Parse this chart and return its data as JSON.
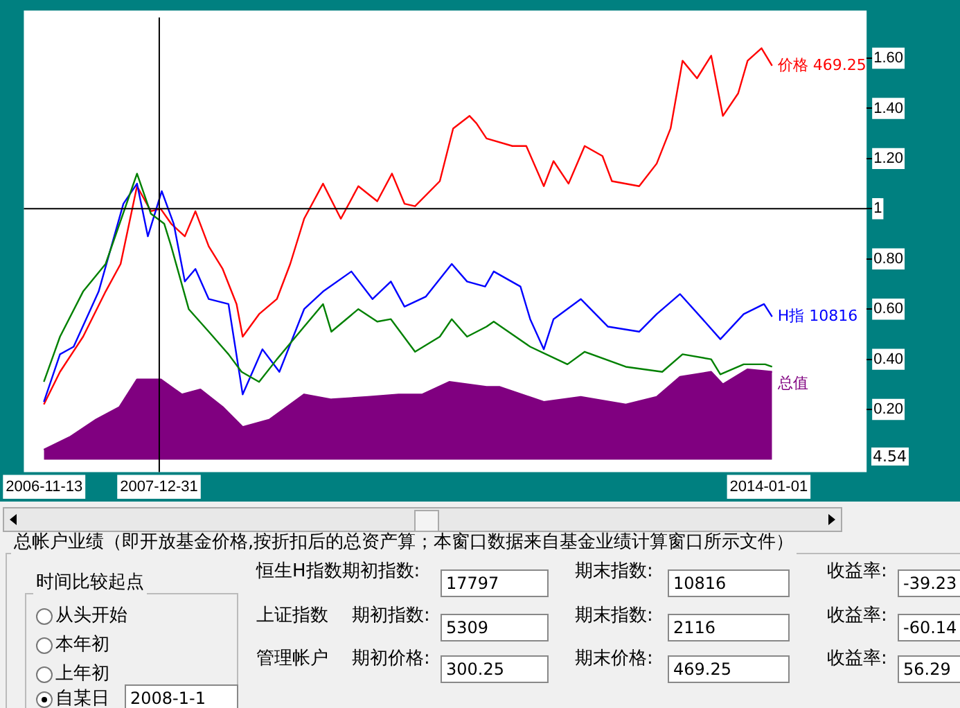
{
  "chart_data": {
    "type": "line",
    "xlim": [
      "2006-09-01",
      "2014-12-19"
    ],
    "xticks": [
      "2006-11-13",
      "2007-12-31",
      "2014-01-01"
    ],
    "ylim": [
      -0.05,
      1.79
    ],
    "yticks": [
      {
        "value": 0.2,
        "label": "0.20"
      },
      {
        "value": 0.4,
        "label": "0.40"
      },
      {
        "value": 0.6,
        "label": "0.60"
      },
      {
        "value": 0.8,
        "label": "0.80"
      },
      1,
      {
        "value": 1.2,
        "label": "1.20"
      },
      {
        "value": 1.4,
        "label": "1.40"
      },
      {
        "value": 1.6,
        "label": "1.60"
      }
    ],
    "ref_lines": [
      {
        "axis": "y",
        "value": 1,
        "color": "#000000"
      },
      {
        "axis": "x",
        "value": "2008-01-01",
        "color": "#000000"
      }
    ],
    "series": [
      {
        "name": "总值",
        "type": "area",
        "color": "#800080",
        "x": [
          "2006-11-12",
          "2007-02-13",
          "2007-05-19",
          "2007-08-11",
          "2007-10-13",
          "2008-01-06",
          "2008-03-22",
          "2008-05-28",
          "2008-08-16",
          "2008-10-27",
          "2009-02-01",
          "2009-06-05",
          "2009-09-11",
          "2010-01-20",
          "2010-05-11",
          "2010-08-04",
          "2010-11-09",
          "2011-03-23",
          "2011-05-08",
          "2011-10-15",
          "2012-02-25",
          "2012-08-05",
          "2012-11-24",
          "2013-02-16",
          "2013-06-08",
          "2013-07-20",
          "2013-10-17",
          "2014-01-13"
        ],
        "values": [
          0.04,
          0.09,
          0.16,
          0.21,
          0.32,
          0.32,
          0.26,
          0.28,
          0.21,
          0.13,
          0.16,
          0.26,
          0.24,
          0.25,
          0.26,
          0.26,
          0.31,
          0.29,
          0.29,
          0.23,
          0.25,
          0.22,
          0.25,
          0.33,
          0.35,
          0.3,
          0.36,
          0.35
        ]
      },
      {
        "type": "line",
        "color": "#008000",
        "x": [
          "2006-11-12",
          "2007-01-09",
          "2007-04-02",
          "2007-06-22",
          "2007-10-13",
          "2007-12-02",
          "2008-01-19",
          "2008-02-13",
          "2008-04-16",
          "2008-06-27",
          "2008-09-06",
          "2008-10-23",
          "2008-12-25",
          "2009-02-27",
          "2009-06-05",
          "2009-08-12",
          "2009-09-11",
          "2009-12-17",
          "2010-02-23",
          "2010-04-13",
          "2010-07-09",
          "2010-10-06",
          "2010-11-18",
          "2011-01-12",
          "2011-03-23",
          "2011-04-18",
          "2011-08-27",
          "2012-01-08",
          "2012-03-10",
          "2012-08-05",
          "2012-12-14",
          "2013-02-25",
          "2013-06-08",
          "2013-07-11",
          "2013-10-03",
          "2013-12-19",
          "2014-01-13"
        ],
        "values": [
          0.31,
          0.49,
          0.67,
          0.78,
          1.14,
          0.98,
          0.94,
          0.85,
          0.6,
          0.51,
          0.42,
          0.35,
          0.31,
          0.4,
          0.53,
          0.62,
          0.51,
          0.6,
          0.55,
          0.56,
          0.43,
          0.49,
          0.56,
          0.49,
          0.53,
          0.55,
          0.45,
          0.38,
          0.43,
          0.37,
          0.35,
          0.42,
          0.4,
          0.34,
          0.38,
          0.38,
          0.37
        ]
      },
      {
        "name": "H指 10816",
        "type": "line",
        "color": "#0000ff",
        "x": [
          "2006-11-12",
          "2007-01-09",
          "2007-02-27",
          "2007-05-28",
          "2007-08-25",
          "2007-10-13",
          "2007-11-21",
          "2008-01-10",
          "2008-02-22",
          "2008-04-02",
          "2008-05-10",
          "2008-06-27",
          "2008-09-06",
          "2008-10-27",
          "2009-01-06",
          "2009-03-08",
          "2009-06-05",
          "2009-08-12",
          "2009-11-22",
          "2010-02-06",
          "2010-04-13",
          "2010-06-01",
          "2010-08-17",
          "2010-11-18",
          "2011-01-12",
          "2011-03-18",
          "2011-04-18",
          "2011-07-23",
          "2011-08-27",
          "2011-10-15",
          "2011-11-19",
          "2012-02-25",
          "2012-06-02",
          "2012-09-22",
          "2012-11-24",
          "2013-02-16",
          "2013-05-08",
          "2013-07-11",
          "2013-10-03",
          "2013-12-15",
          "2014-01-13"
        ],
        "values": [
          0.23,
          0.42,
          0.45,
          0.67,
          1.02,
          1.1,
          0.89,
          1.07,
          0.94,
          0.71,
          0.76,
          0.64,
          0.62,
          0.26,
          0.44,
          0.35,
          0.6,
          0.67,
          0.75,
          0.64,
          0.71,
          0.61,
          0.65,
          0.78,
          0.71,
          0.69,
          0.75,
          0.69,
          0.56,
          0.44,
          0.56,
          0.64,
          0.53,
          0.51,
          0.58,
          0.66,
          0.56,
          0.48,
          0.58,
          0.62,
          0.57
        ]
      },
      {
        "name": "价格 469.25",
        "type": "line",
        "color": "#ff0000",
        "x": [
          "2006-11-12",
          "2007-01-09",
          "2007-04-02",
          "2007-06-22",
          "2007-08-15",
          "2007-10-13",
          "2007-12-02",
          "2008-01-06",
          "2008-02-13",
          "2008-04-02",
          "2008-05-10",
          "2008-06-27",
          "2008-08-16",
          "2008-10-05",
          "2008-10-27",
          "2008-12-25",
          "2009-02-27",
          "2009-04-16",
          "2009-06-05",
          "2009-08-12",
          "2009-10-15",
          "2009-12-17",
          "2010-02-23",
          "2010-04-17",
          "2010-06-01",
          "2010-07-09",
          "2010-10-06",
          "2010-11-23",
          "2011-01-21",
          "2011-02-15",
          "2011-03-23",
          "2011-06-24",
          "2011-08-13",
          "2011-10-15",
          "2011-11-19",
          "2012-01-12",
          "2012-03-10",
          "2012-05-13",
          "2012-06-16",
          "2012-09-22",
          "2012-11-24",
          "2013-01-13",
          "2013-02-25",
          "2013-04-18",
          "2013-06-08",
          "2013-07-20",
          "2013-09-13",
          "2013-10-17",
          "2013-12-06",
          "2014-01-13"
        ],
        "values": [
          0.22,
          0.35,
          0.49,
          0.67,
          0.78,
          1.09,
          0.99,
          1,
          0.94,
          0.89,
          0.99,
          0.85,
          0.76,
          0.62,
          0.49,
          0.58,
          0.64,
          0.78,
          0.96,
          1.1,
          0.96,
          1.09,
          1.03,
          1.14,
          1.02,
          1.01,
          1.11,
          1.32,
          1.37,
          1.34,
          1.28,
          1.25,
          1.25,
          1.09,
          1.19,
          1.1,
          1.25,
          1.21,
          1.11,
          1.09,
          1.18,
          1.32,
          1.59,
          1.52,
          1.61,
          1.37,
          1.46,
          1.59,
          1.64,
          1.57
        ]
      }
    ],
    "annotations": [
      "总帐户业绩（即开放基金价格,按折扣后的总资产算；本窗口数据来自基金业绩计算窗口所示文件）",
      "时间比较起点",
      "从头开始",
      "本年初",
      "上年初",
      "自某日",
      "2008-1-1",
      "恒生H指数期初指数:",
      "17797",
      "期末指数:",
      "10816",
      "收益率:",
      "-39.23",
      "上证指数",
      "期初指数:",
      "5309",
      "期末指数:",
      "2116",
      "收益率:",
      "-60.14",
      "管理帐户",
      "期初价格:",
      "300.25",
      "期末价格:",
      "469.25",
      "收益率:",
      "56.29",
      "4.54"
    ]
  }
}
